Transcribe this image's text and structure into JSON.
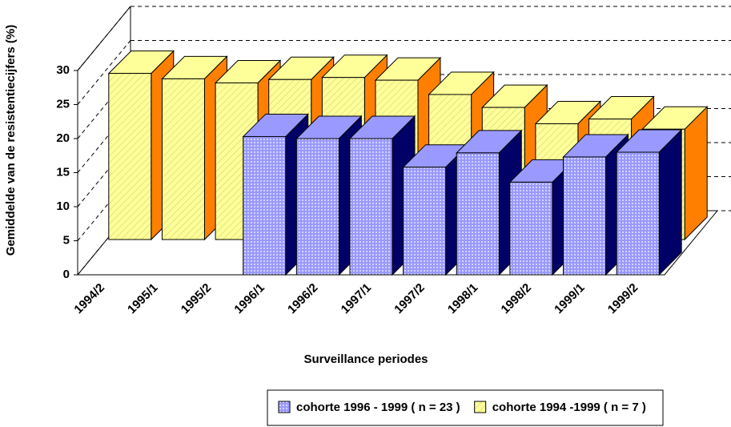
{
  "chart_data": {
    "type": "bar3d",
    "y_label": "Gemiddelde van de resistentiecijfers (%)",
    "x_label": "Surveillance periodes",
    "categories": [
      "1994/2",
      "1995/1",
      "1995/2",
      "1996/1",
      "1996/2",
      "1997/1",
      "1997/2",
      "1998/1",
      "1998/2",
      "1999/1",
      "1999/2"
    ],
    "series": [
      {
        "name": "cohorte 1996 - 1999 ( n = 23 )",
        "color": "#9999ff",
        "side_color": "#000066",
        "values": [
          null,
          null,
          null,
          20.3,
          20,
          20,
          15.8,
          17.9,
          13.6,
          17.3,
          18
        ]
      },
      {
        "name": "cohorte 1994 -1999 ( n = 7 )",
        "color": "#ffff99",
        "side_color": "#ff8000",
        "values": [
          24.4,
          23.6,
          23,
          23.5,
          23.8,
          23.4,
          21.3,
          19.4,
          17,
          17.7,
          16.2
        ]
      }
    ],
    "ylim": [
      0,
      30
    ],
    "yticks": [
      0,
      5,
      10,
      15,
      20,
      25,
      30
    ],
    "grid": true,
    "legend": "bottom"
  }
}
